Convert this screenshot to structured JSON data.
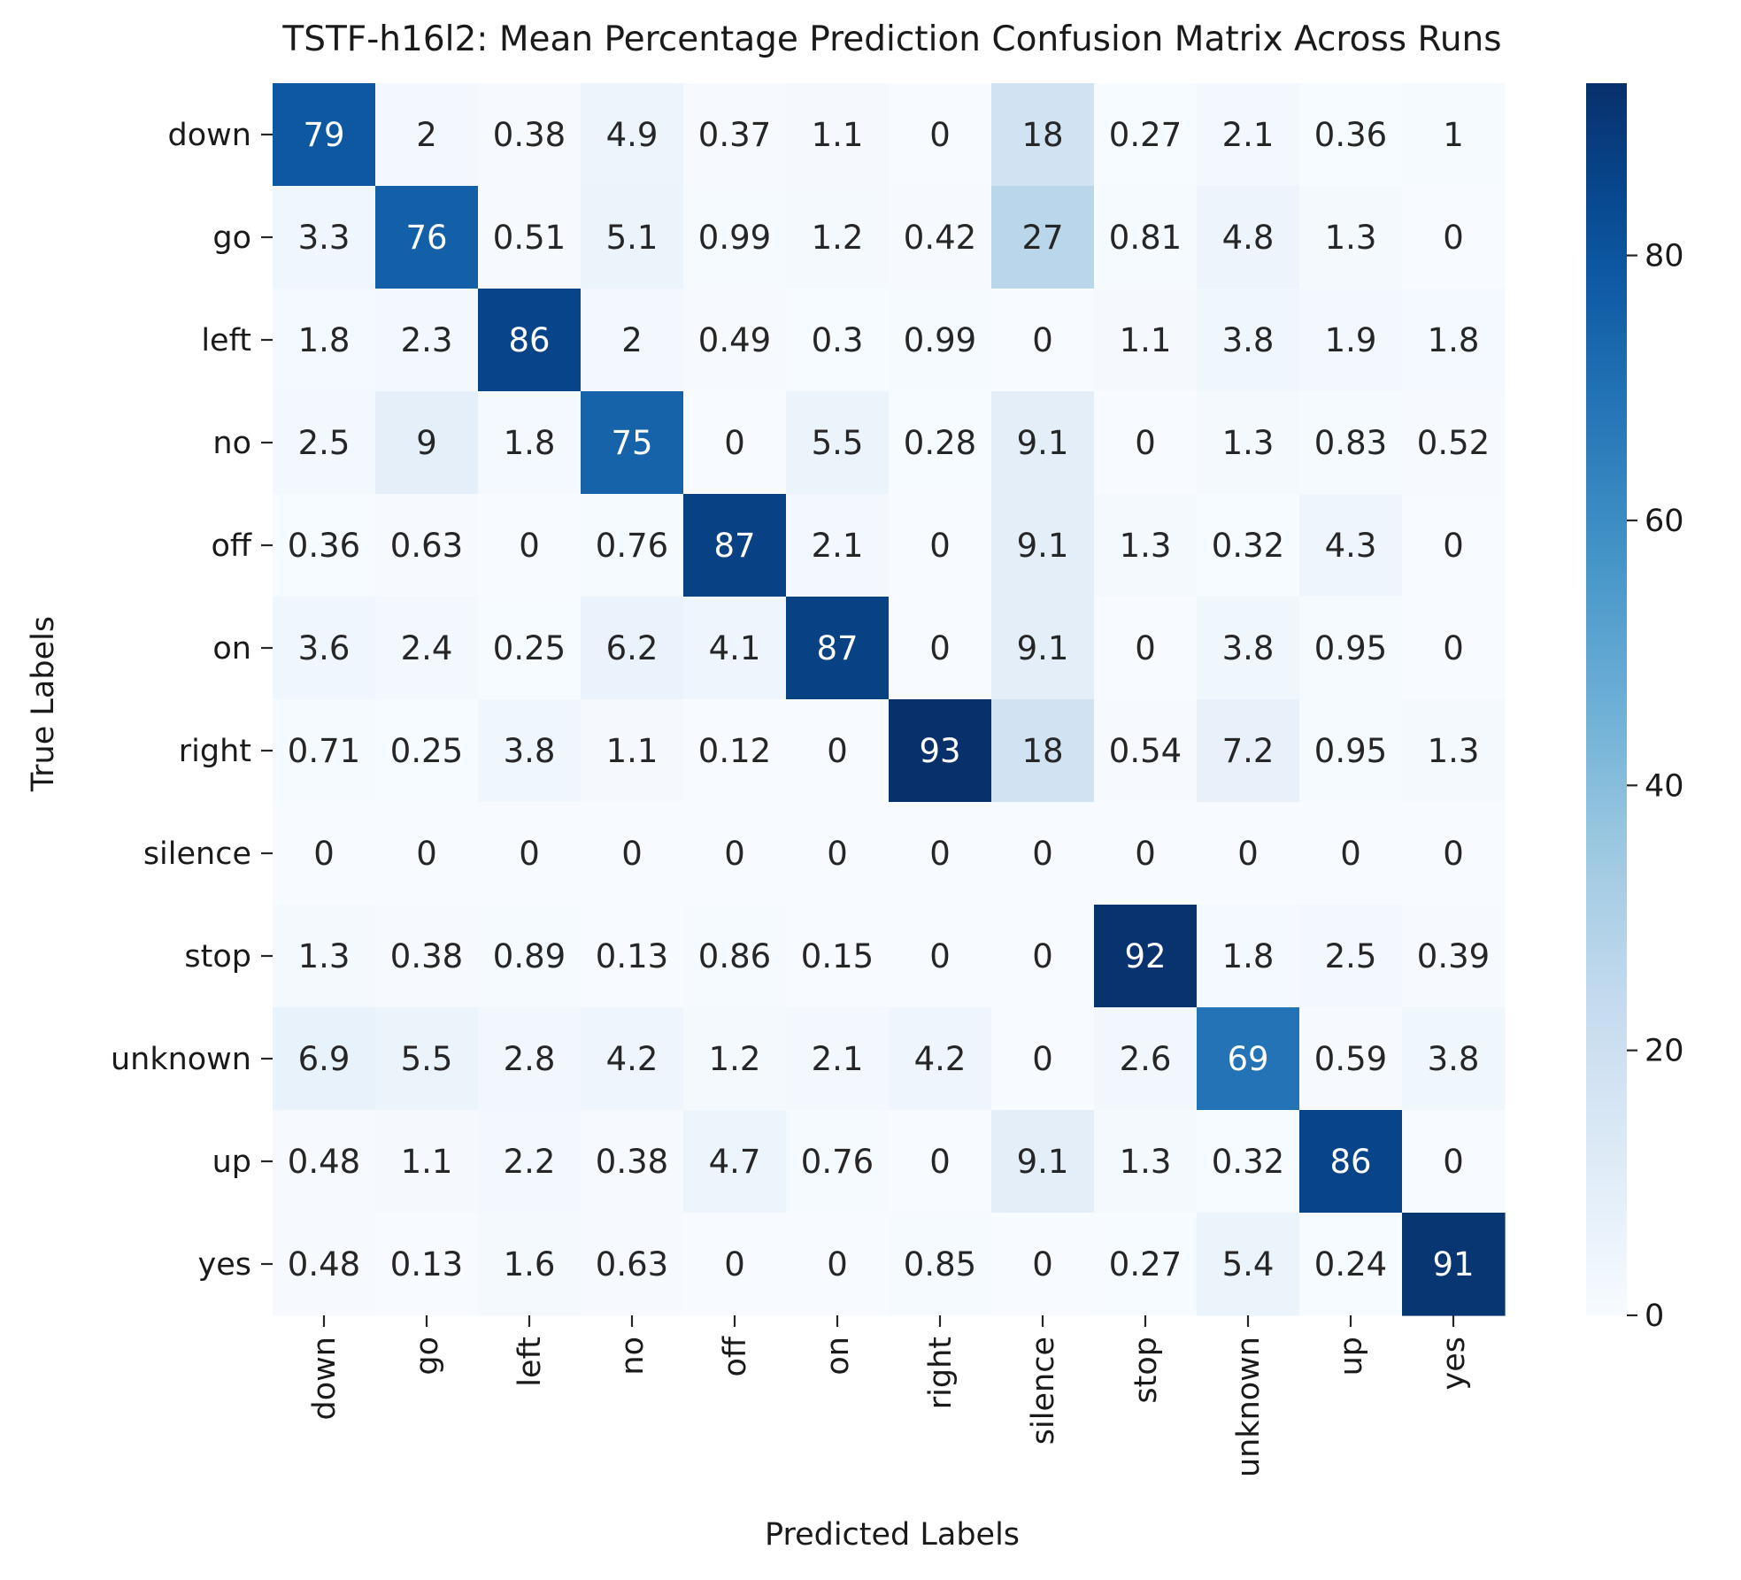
{
  "chart_data": {
    "type": "heatmap",
    "title": "TSTF-h16l2: Mean Percentage Prediction Confusion Matrix Across Runs",
    "xlabel": "Predicted Labels",
    "ylabel": "True Labels",
    "x_categories": [
      "down",
      "go",
      "left",
      "no",
      "off",
      "on",
      "right",
      "silence",
      "stop",
      "unknown",
      "up",
      "yes"
    ],
    "y_categories": [
      "down",
      "go",
      "left",
      "no",
      "off",
      "on",
      "right",
      "silence",
      "stop",
      "unknown",
      "up",
      "yes"
    ],
    "values": [
      [
        79,
        2,
        0.38,
        4.9,
        0.37,
        1.1,
        0,
        18,
        0.27,
        2.1,
        0.36,
        1
      ],
      [
        3.3,
        76,
        0.51,
        5.1,
        0.99,
        1.2,
        0.42,
        27,
        0.81,
        4.8,
        1.3,
        0
      ],
      [
        1.8,
        2.3,
        86,
        2,
        0.49,
        0.3,
        0.99,
        0,
        1.1,
        3.8,
        1.9,
        1.8
      ],
      [
        2.5,
        9,
        1.8,
        75,
        0,
        5.5,
        0.28,
        9.1,
        0,
        1.3,
        0.83,
        0.52
      ],
      [
        0.36,
        0.63,
        0,
        0.76,
        87,
        2.1,
        0,
        9.1,
        1.3,
        0.32,
        4.3,
        0
      ],
      [
        3.6,
        2.4,
        0.25,
        6.2,
        4.1,
        87,
        0,
        9.1,
        0,
        3.8,
        0.95,
        0
      ],
      [
        0.71,
        0.25,
        3.8,
        1.1,
        0.12,
        0,
        93,
        18,
        0.54,
        7.2,
        0.95,
        1.3
      ],
      [
        0,
        0,
        0,
        0,
        0,
        0,
        0,
        0,
        0,
        0,
        0,
        0
      ],
      [
        1.3,
        0.38,
        0.89,
        0.13,
        0.86,
        0.15,
        0,
        0,
        92,
        1.8,
        2.5,
        0.39
      ],
      [
        6.9,
        5.5,
        2.8,
        4.2,
        1.2,
        2.1,
        4.2,
        0,
        2.6,
        69,
        0.59,
        3.8
      ],
      [
        0.48,
        1.1,
        2.2,
        0.38,
        4.7,
        0.76,
        0,
        9.1,
        1.3,
        0.32,
        86,
        0
      ],
      [
        0.48,
        0.13,
        1.6,
        0.63,
        0,
        0,
        0.85,
        0,
        0.27,
        5.4,
        0.24,
        91
      ]
    ],
    "colorbar": {
      "colormap": "Blues",
      "range": [
        0,
        93
      ],
      "ticks": [
        "0",
        "20",
        "40",
        "60",
        "80"
      ]
    }
  }
}
